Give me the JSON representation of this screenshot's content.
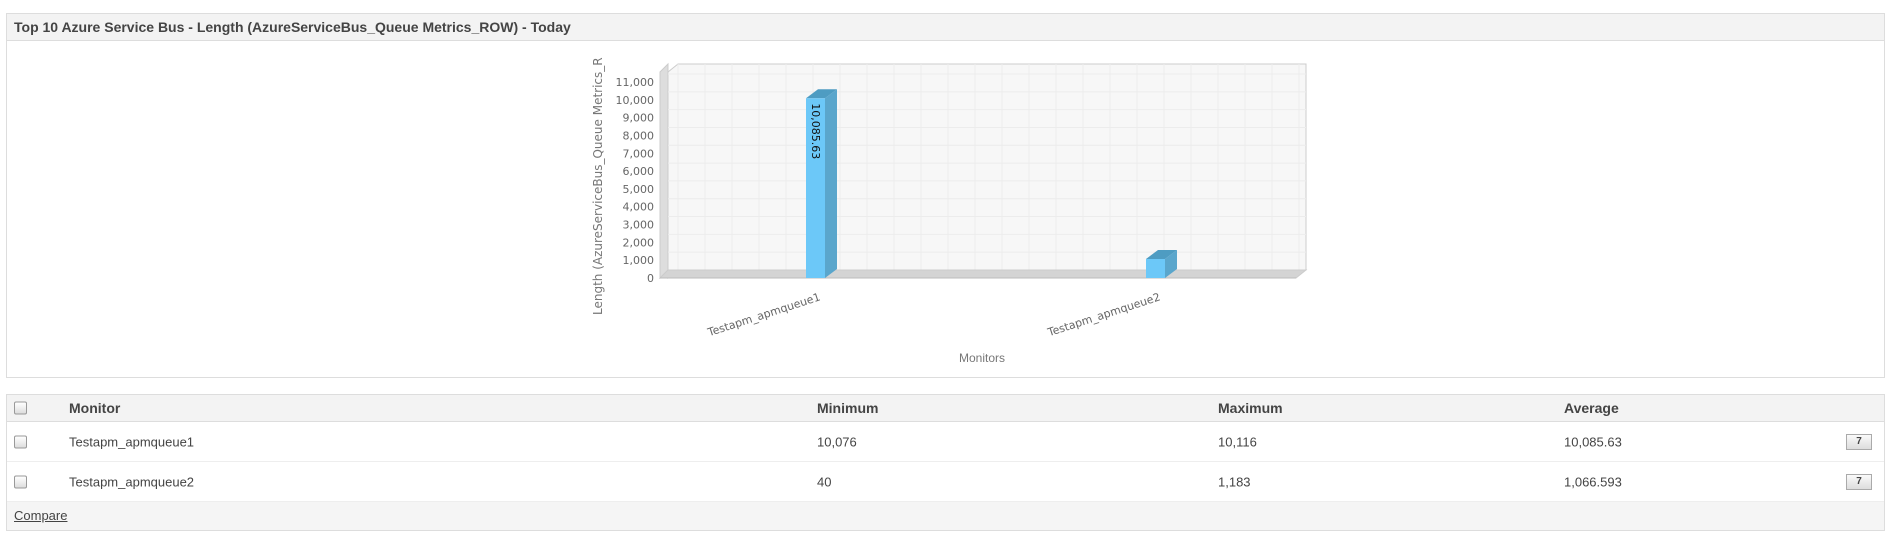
{
  "panel": {
    "title": "Top 10 Azure Service Bus - Length (AzureServiceBus_Queue Metrics_ROW) - Today"
  },
  "chart_data": {
    "type": "bar",
    "style": "3d",
    "categories": [
      "Testapm_apmqueue1",
      "Testapm_apmqueue2"
    ],
    "values": [
      10085.63,
      1066.593
    ],
    "data_labels": [
      "10,085.63",
      ""
    ],
    "ylabel": "Length (AzureServiceBus_Queue Metrics_R",
    "xlabel": "Monitors",
    "ylim": [
      0,
      11000
    ],
    "yticks": [
      0,
      1000,
      2000,
      3000,
      4000,
      5000,
      6000,
      7000,
      8000,
      9000,
      10000,
      11000
    ],
    "grid": true,
    "bar_color": "#6cc8f8"
  },
  "table": {
    "headers": [
      "Monitor",
      "Minimum",
      "Maximum",
      "Average"
    ],
    "rows": [
      {
        "monitor": "Testapm_apmqueue1",
        "min": "10,076",
        "max": "10,116",
        "avg": "10,085.63",
        "btn": "7"
      },
      {
        "monitor": "Testapm_apmqueue2",
        "min": "40",
        "max": "1,183",
        "avg": "1,066.593",
        "btn": "7"
      }
    ],
    "compare": "Compare"
  }
}
